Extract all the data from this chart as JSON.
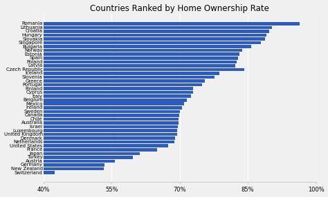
{
  "title": "Countries Ranked by Home Ownership Rate",
  "countries": [
    "Romania",
    "Lithuania",
    "Croatia",
    "Hungary",
    "Slovakia",
    "Singapore",
    "Bulgaria",
    "Norway",
    "Estonia",
    "Spain",
    "Poland",
    "Latvia",
    "Czech Republic",
    "Iceland",
    "Slovenia",
    "Greece",
    "Portugal",
    "Finland",
    "Cyprus",
    "Italy",
    "Belgium",
    "Mexico",
    "Ireland",
    "Sweden",
    "Canada",
    "Chile",
    "Australia",
    "Israel",
    "Luxembourg",
    "United Kingdom",
    "Denmark",
    "Netherlands",
    "United States",
    "France",
    "Japan",
    "Turkey",
    "Austria",
    "Germany",
    "New Zealand",
    "Switzerland"
  ],
  "values": [
    96.4,
    90.3,
    89.7,
    89.1,
    88.8,
    87.9,
    85.8,
    83.8,
    83.2,
    82.8,
    82.5,
    82.3,
    84.2,
    78.7,
    77.6,
    75.5,
    74.9,
    73.0,
    72.9,
    72.5,
    71.5,
    71.0,
    70.5,
    70.0,
    69.9,
    69.8,
    69.7,
    69.6,
    69.5,
    69.4,
    68.9,
    68.8,
    67.4,
    65.0,
    61.2,
    59.6,
    55.7,
    53.4,
    53.3,
    42.5
  ],
  "bar_color": "#2d5bbf",
  "background_color": "#f0f0f0",
  "xlim_min": 40,
  "xlim_max": 100,
  "xtick_labels": [
    "40%",
    "55%",
    "70%",
    "85%",
    "100%"
  ],
  "xtick_values": [
    40,
    55,
    70,
    85,
    100
  ],
  "title_fontsize": 8.5,
  "label_fontsize": 5.0,
  "tick_fontsize": 6.0,
  "bar_height": 0.82
}
